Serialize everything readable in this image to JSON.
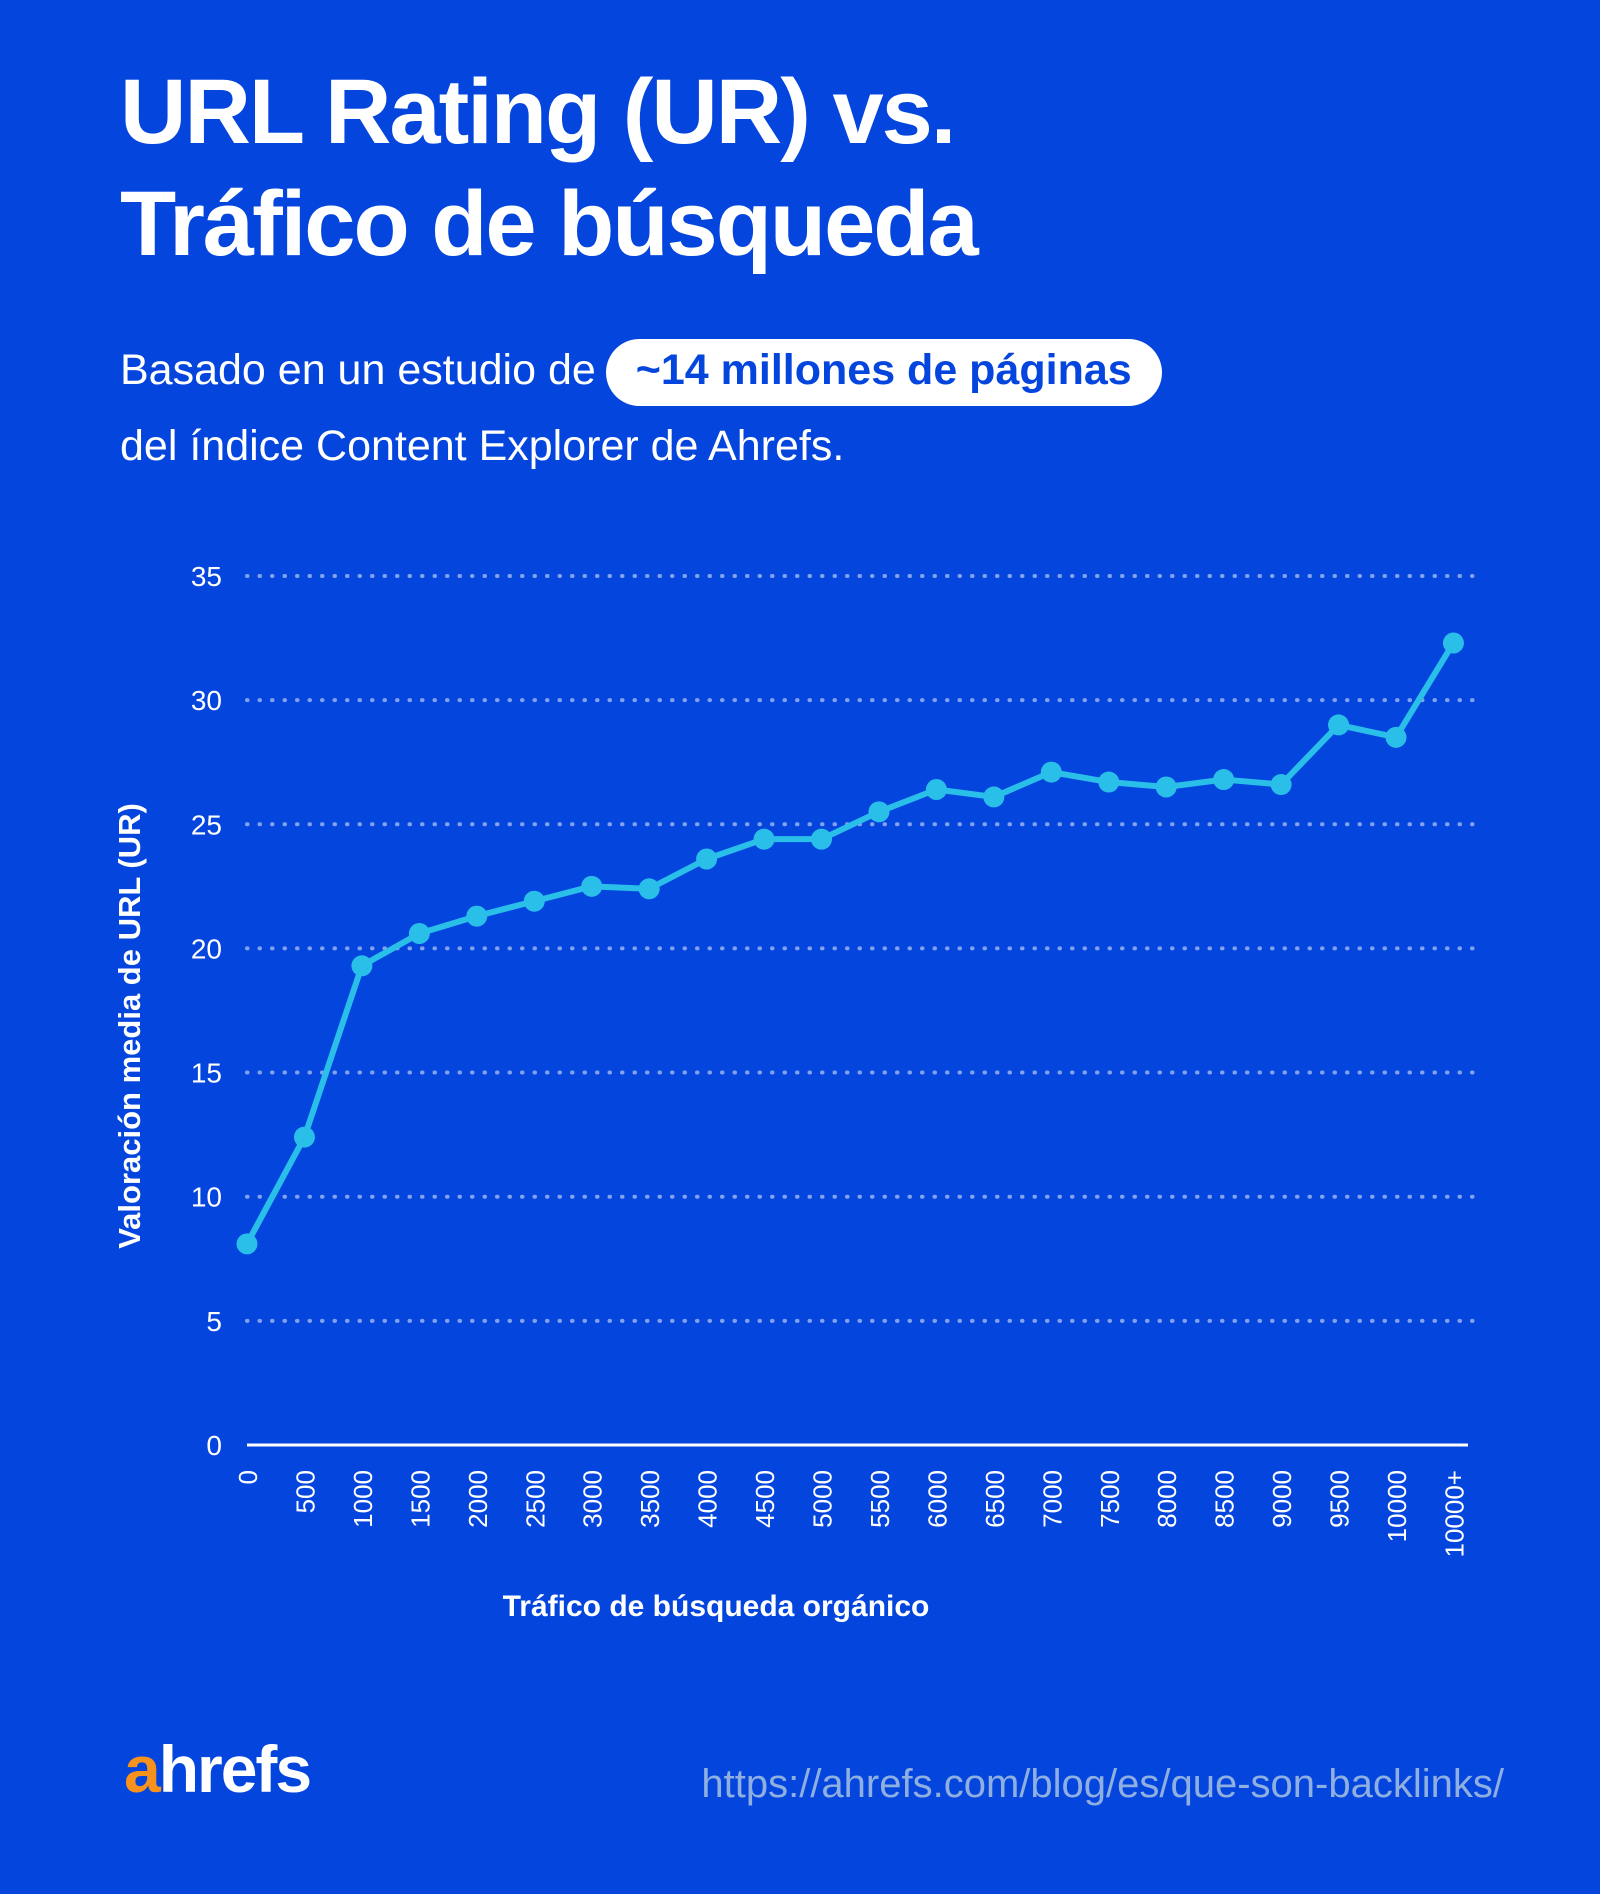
{
  "header": {
    "title_line1": "URL Rating (UR) vs.",
    "title_line2": "Tráfico de búsqueda",
    "subtitle_prefix": "Basado en un estudio de",
    "subtitle_highlight": "~14 millones de páginas",
    "subtitle_line2": "del índice Content Explorer de Ahrefs."
  },
  "chart_data": {
    "type": "line",
    "title": "URL Rating (UR) vs. Tráfico de búsqueda",
    "categories": [
      "0",
      "500",
      "1000",
      "1500",
      "2000",
      "2500",
      "3000",
      "3500",
      "4000",
      "4500",
      "5000",
      "5500",
      "6000",
      "6500",
      "7000",
      "7500",
      "8000",
      "8500",
      "9000",
      "9500",
      "10000",
      "10000+"
    ],
    "values": [
      8.1,
      12.4,
      19.3,
      20.6,
      21.3,
      21.9,
      22.5,
      22.4,
      23.6,
      24.4,
      24.4,
      25.5,
      26.4,
      26.1,
      27.1,
      26.7,
      26.5,
      26.8,
      26.6,
      29.0,
      28.5,
      32.3
    ],
    "xlabel": "Tráfico de búsqueda orgánico",
    "ylabel": "Valoración media de URL (UR)",
    "yticks": [
      0,
      5,
      10,
      15,
      20,
      25,
      30,
      35
    ],
    "ylim": [
      0,
      35
    ],
    "grid": "horizontal-dotted",
    "legend": "none",
    "line_color": "#2ABFE8",
    "point_color": "#2ABFE8"
  },
  "footer": {
    "logo_a": "a",
    "logo_rest": "hrefs",
    "url": "https://ahrefs.com/blog/es/que-son-backlinks/"
  },
  "colors": {
    "background": "#0445DE",
    "accent_cyan": "#2ABFE8",
    "grid_dots": "rgba(255,255,255,0.5)",
    "axis_line": "#FFFFFF",
    "text": "#FFFFFF",
    "pill_bg": "#FFFFFF",
    "pill_text": "#0445DE",
    "logo_orange": "#F8921D",
    "url_text": "#8FAFE0"
  }
}
